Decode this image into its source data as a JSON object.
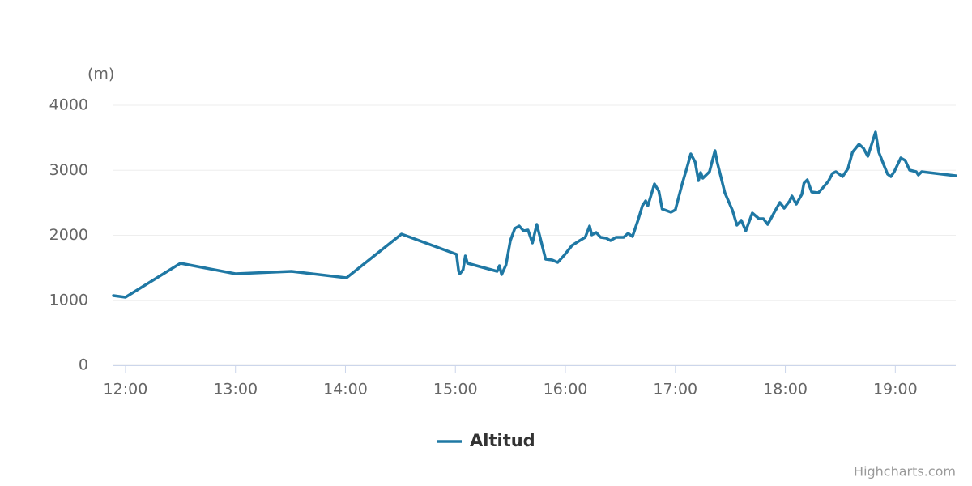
{
  "chart_data": {
    "type": "line",
    "y_axis_title": "(m)",
    "x": [
      11.89,
      12.0,
      12.5,
      13.0,
      13.51,
      14.01,
      14.51,
      15.01,
      15.03,
      15.04,
      15.07,
      15.09,
      15.11,
      15.38,
      15.4,
      15.42,
      15.46,
      15.5,
      15.54,
      15.58,
      15.62,
      15.66,
      15.7,
      15.74,
      15.77,
      15.82,
      15.88,
      15.93,
      15.99,
      16.06,
      16.13,
      16.18,
      16.22,
      16.24,
      16.28,
      16.32,
      16.37,
      16.41,
      16.46,
      16.53,
      16.57,
      16.61,
      16.66,
      16.7,
      16.73,
      16.75,
      16.79,
      16.81,
      16.85,
      16.88,
      16.96,
      17.0,
      17.06,
      17.11,
      17.14,
      17.18,
      17.21,
      17.23,
      17.25,
      17.31,
      17.36,
      17.38,
      17.45,
      17.52,
      17.56,
      17.6,
      17.64,
      17.7,
      17.76,
      17.8,
      17.84,
      17.9,
      17.95,
      17.99,
      18.04,
      18.06,
      18.1,
      18.15,
      18.17,
      18.2,
      18.24,
      18.3,
      18.34,
      18.39,
      18.43,
      18.46,
      18.52,
      18.57,
      18.61,
      18.67,
      18.71,
      18.75,
      18.82,
      18.85,
      18.9,
      18.93,
      18.96,
      18.99,
      19.05,
      19.09,
      19.13,
      19.19,
      19.21,
      19.24,
      19.55
    ],
    "series": [
      {
        "name": "Altitud",
        "color": "#1f78a4",
        "values": [
          1072,
          1047,
          1570,
          1408,
          1445,
          1346,
          2019,
          1707,
          1445,
          1408,
          1470,
          1682,
          1570,
          1445,
          1533,
          1396,
          1545,
          1919,
          2106,
          2143,
          2069,
          2081,
          1882,
          2168,
          1969,
          1632,
          1620,
          1583,
          1695,
          1844,
          1919,
          1969,
          2143,
          2006,
          2044,
          1969,
          1956,
          1919,
          1969,
          1969,
          2031,
          1981,
          2230,
          2455,
          2530,
          2455,
          2679,
          2791,
          2679,
          2405,
          2355,
          2393,
          2779,
          3065,
          3252,
          3128,
          2841,
          2966,
          2879,
          2978,
          3302,
          3128,
          2654,
          2380,
          2156,
          2231,
          2069,
          2343,
          2255,
          2255,
          2168,
          2355,
          2505,
          2417,
          2530,
          2604,
          2480,
          2629,
          2804,
          2854,
          2667,
          2654,
          2729,
          2829,
          2953,
          2978,
          2903,
          3028,
          3277,
          3402,
          3340,
          3215,
          3589,
          3277,
          3065,
          2941,
          2903,
          2978,
          3190,
          3153,
          3003,
          2978,
          2928,
          2978,
          2916
        ]
      }
    ],
    "xlim": [
      11.89,
      19.55
    ],
    "xticks": [
      {
        "value": 12,
        "label": "12:00"
      },
      {
        "value": 13,
        "label": "13:00"
      },
      {
        "value": 14,
        "label": "14:00"
      },
      {
        "value": 15,
        "label": "15:00"
      },
      {
        "value": 16,
        "label": "16:00"
      },
      {
        "value": 17,
        "label": "17:00"
      },
      {
        "value": 18,
        "label": "18:00"
      },
      {
        "value": 19,
        "label": "19:00"
      }
    ],
    "ylim": [
      0,
      4000
    ],
    "yticks": [
      0,
      1000,
      2000,
      3000,
      4000
    ],
    "grid": true,
    "legend": "bottom",
    "credits": "Highcharts.com"
  }
}
